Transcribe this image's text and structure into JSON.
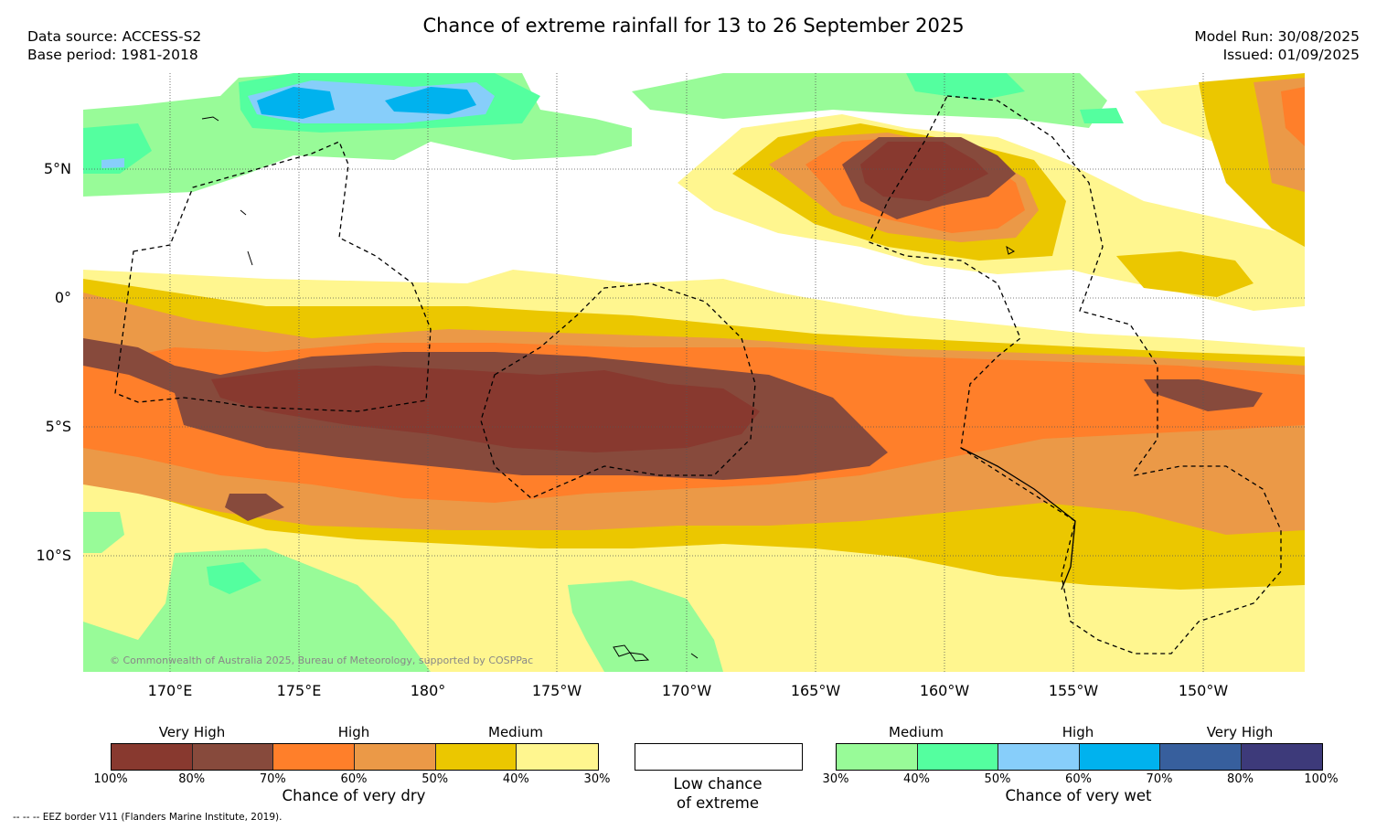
{
  "title": "Chance of extreme rainfall for 13 to 26 September 2025",
  "header": {
    "data_source": "Data source: ACCESS-S2",
    "base_period": "Base period: 1981-2018",
    "model_run": "Model Run: 30/08/2025",
    "issued": "Issued: 01/09/2025"
  },
  "map": {
    "lat_labels": [
      "5°N",
      "0°",
      "5°S",
      "10°S"
    ],
    "lon_labels": [
      "170°E",
      "175°E",
      "180°",
      "175°W",
      "170°W",
      "165°W",
      "160°W",
      "155°W",
      "150°W"
    ],
    "credit": "© Commonwealth of Australia 2025, Bureau of Meteorology, supported by COSPPac"
  },
  "dry_scale": {
    "levels": [
      "Very High",
      "High",
      "Medium"
    ],
    "colors": [
      "#88392f",
      "#874a3c",
      "#ff7f2a",
      "#eb9947",
      "#ebc700",
      "#fff68f"
    ],
    "ticks": [
      "100%",
      "80%",
      "70%",
      "60%",
      "50%",
      "40%",
      "30%"
    ],
    "caption": "Chance of very dry"
  },
  "low_chance": {
    "line1": "Low chance",
    "line2": "of extreme",
    "color": "#ffffff"
  },
  "wet_scale": {
    "levels": [
      "Medium",
      "High",
      "Very High"
    ],
    "colors": [
      "#98fb98",
      "#54ff9f",
      "#87cefa",
      "#00b2ee",
      "#375f9d",
      "#3d3a7a"
    ],
    "ticks": [
      "30%",
      "40%",
      "50%",
      "60%",
      "70%",
      "80%",
      "100%"
    ],
    "caption": "Chance of very wet"
  },
  "footnote": "--  --  -- EEZ border V11 (Flanders Marine Institute, 2019)."
}
